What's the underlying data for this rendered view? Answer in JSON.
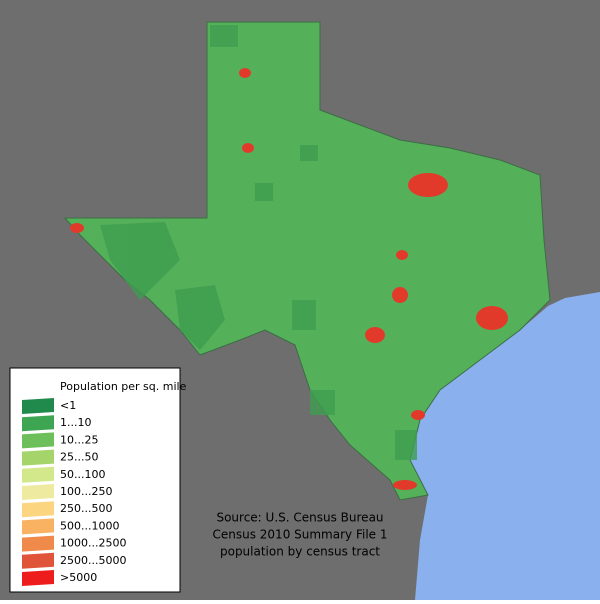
{
  "legend": {
    "title": "Population per sq. mile",
    "items": [
      {
        "label": "<1",
        "color": "#1f8a4c"
      },
      {
        "label": "1...10",
        "color": "#3ea652"
      },
      {
        "label": "10...25",
        "color": "#6cbf5a"
      },
      {
        "label": "25...50",
        "color": "#a4d46a"
      },
      {
        "label": "50...100",
        "color": "#d2e88a"
      },
      {
        "label": "100...250",
        "color": "#eeeaa0"
      },
      {
        "label": "250...500",
        "color": "#fbd580"
      },
      {
        "label": "500...1000",
        "color": "#f8b262"
      },
      {
        "label": "1000...2500",
        "color": "#f08a4a"
      },
      {
        "label": "2500...5000",
        "color": "#e0553a"
      },
      {
        "label": ">5000",
        "color": "#ee1d1d"
      }
    ]
  },
  "source": {
    "lines": [
      "Source: U.S. Census Bureau",
      "Census 2010 Summary File 1",
      "population by census tract"
    ]
  }
}
